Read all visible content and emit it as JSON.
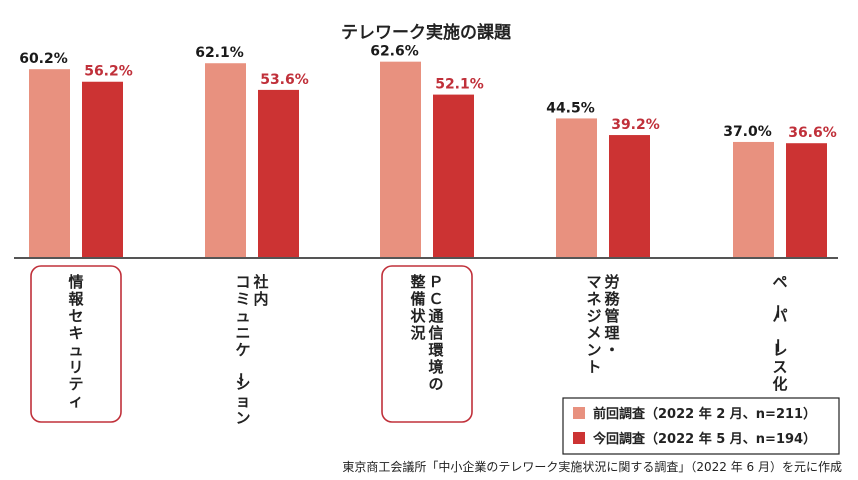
{
  "chart_data": {
    "type": "bar",
    "title": "テレワーク実施の課題",
    "categories": [
      [
        "情報セキュリティ"
      ],
      [
        "社内",
        "コミュニケーション"
      ],
      [
        "ＰＣ通信環境の",
        "整備状況"
      ],
      [
        "労務管理・",
        "マネジメント"
      ],
      [
        "ペーパーレス化"
      ]
    ],
    "series": [
      {
        "name": "前回調査（2022 年 2 月、n=211）",
        "values": [
          60.2,
          62.1,
          62.6,
          44.5,
          37.0
        ],
        "color": "#e8917f",
        "label_color": "#1a1a1a"
      },
      {
        "name": "今回調査（2022 年 5 月、n=194）",
        "values": [
          56.2,
          53.6,
          52.1,
          39.2,
          36.6
        ],
        "color": "#cc3333",
        "label_color": "#c0303a"
      }
    ],
    "value_labels": [
      [
        "60.2%",
        "62.1%",
        "62.6%",
        "44.5%",
        "37.0%"
      ],
      [
        "56.2%",
        "53.6%",
        "52.1%",
        "39.2%",
        "36.6%"
      ]
    ],
    "highlighted_categories": [
      0,
      2
    ],
    "highlight_color": "#c0303a",
    "ylim": [
      0,
      66
    ],
    "grid": false,
    "legend_position": "bottom-right"
  },
  "source": "東京商工会議所「中小企業のテレワーク実施状況に関する調査」（2022 年 6 月）を元に作成"
}
